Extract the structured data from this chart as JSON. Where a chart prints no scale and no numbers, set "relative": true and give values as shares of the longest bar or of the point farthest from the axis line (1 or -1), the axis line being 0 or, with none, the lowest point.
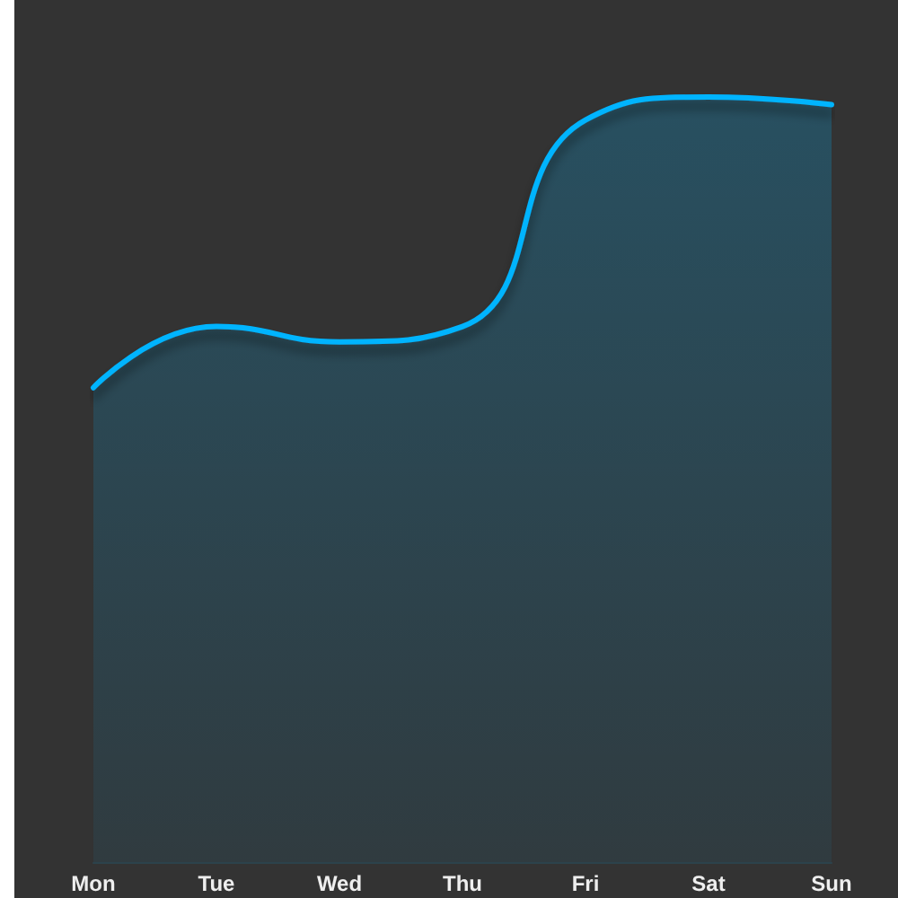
{
  "chart_data": {
    "type": "area",
    "relative": true,
    "categories": [
      "Mon",
      "Tue",
      "Wed",
      "Thu",
      "Fri",
      "Sat",
      "Sun"
    ],
    "values": [
      0.62,
      0.7,
      0.68,
      0.7,
      0.97,
      1,
      0.99
    ],
    "color": "#00b4ff",
    "marker": "none",
    "line_style": "solid",
    "grid": false
  }
}
